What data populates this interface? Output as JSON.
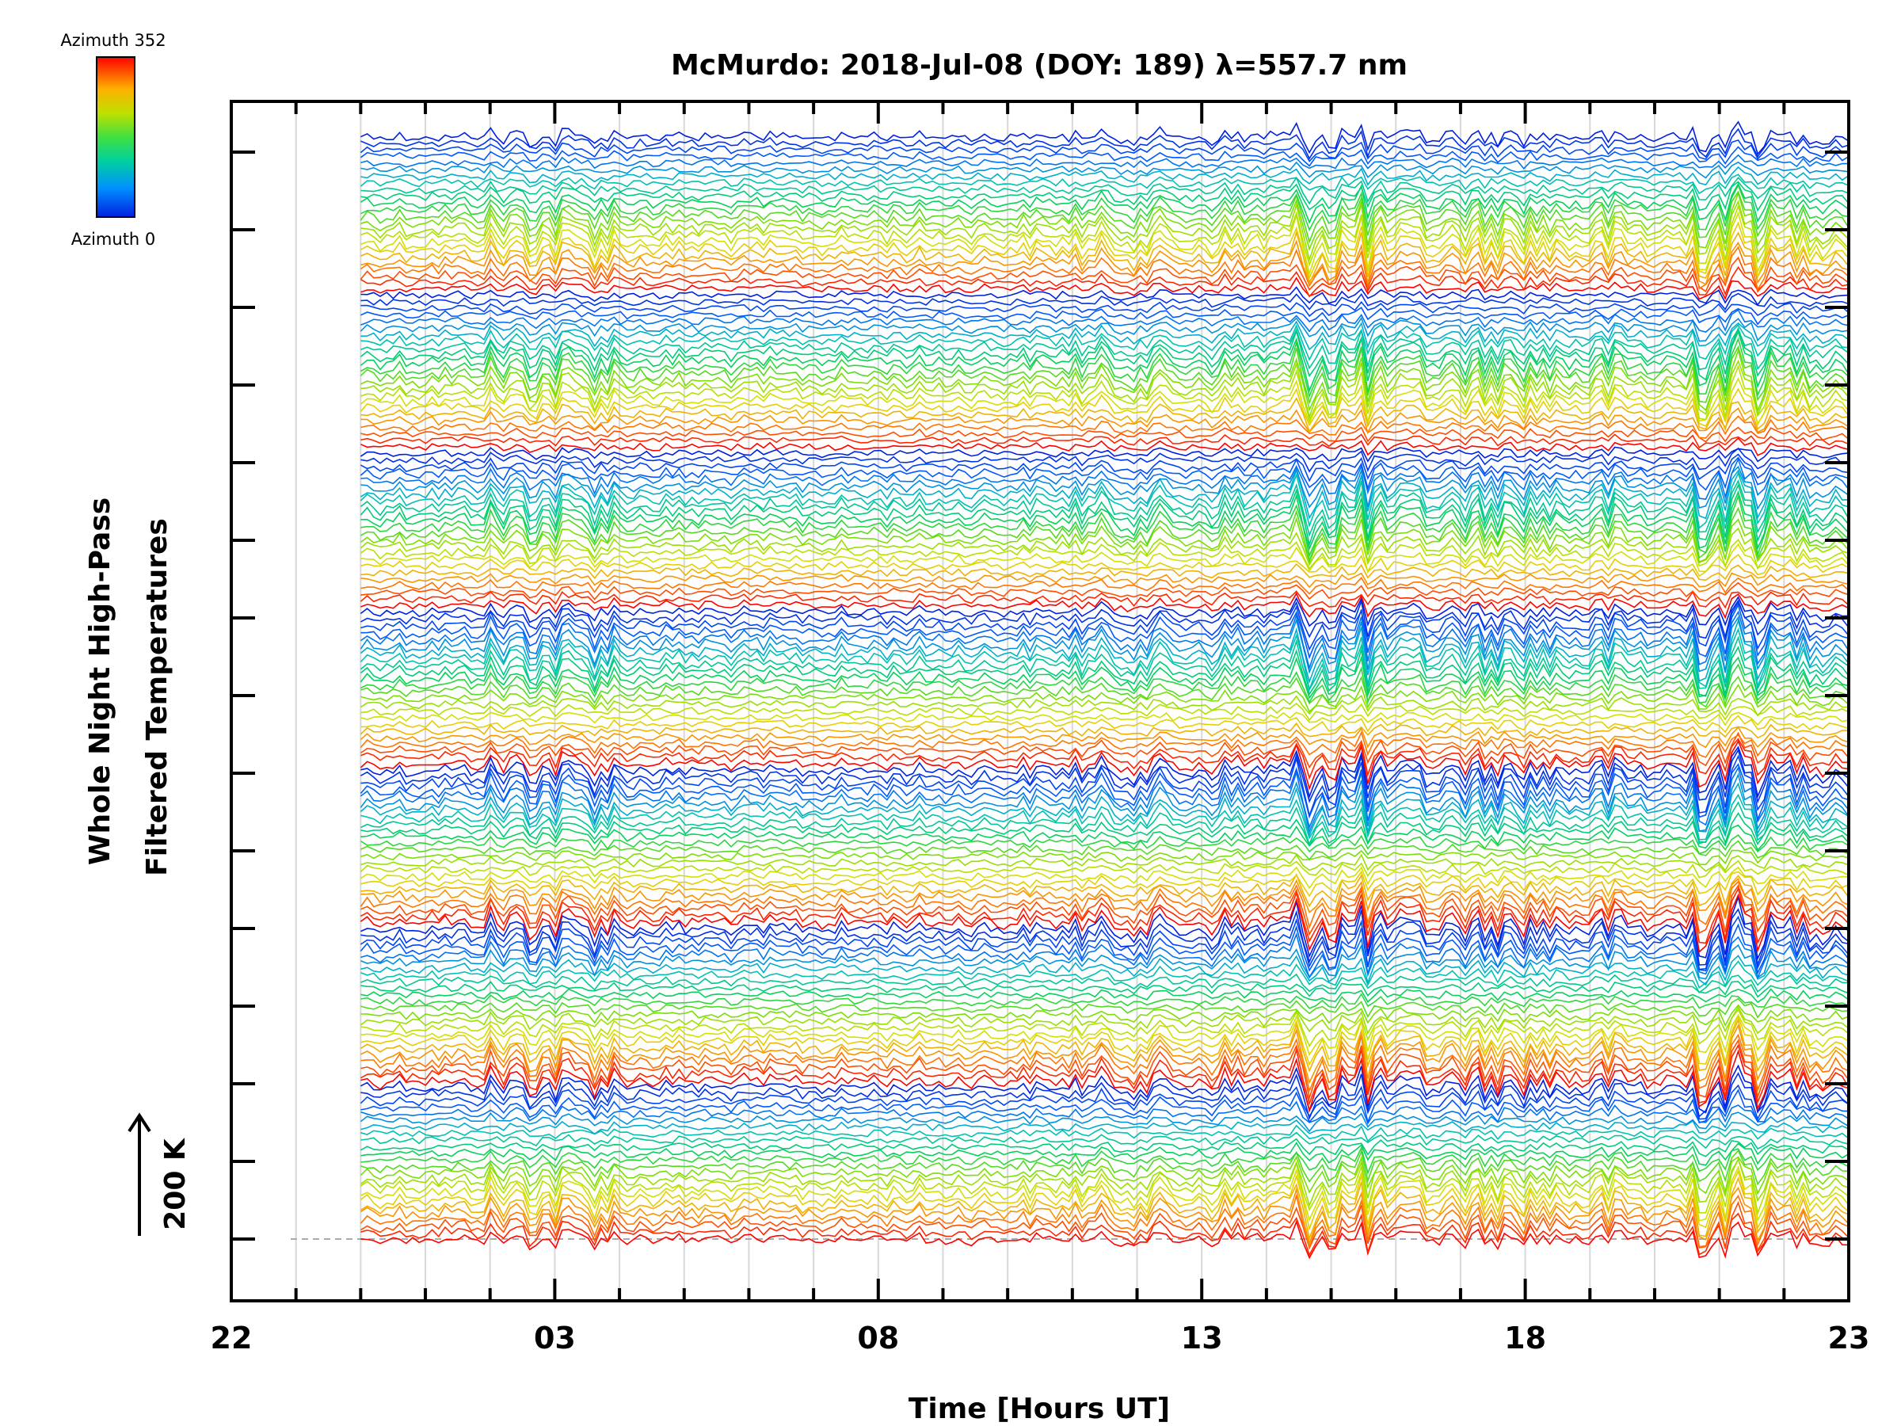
{
  "chart_data": {
    "type": "line",
    "title": "McMurdo: 2018-Jul-08 (DOY: 189) λ=557.7 nm",
    "xlabel": "Time [Hours UT]",
    "ylabel_line1": "Whole Night High-Pass",
    "ylabel_line2": "Filtered Temperatures",
    "scale_label": "200 K",
    "x_tick_labels": [
      "22",
      "03",
      "08",
      "13",
      "18",
      "23"
    ],
    "x_range_hours": [
      22,
      47
    ],
    "x_data_range_hours": [
      24,
      47
    ],
    "colorbar": {
      "max_label": "Azimuth 352",
      "min_label": "Azimuth 0",
      "colors": [
        "#ff0000",
        "#ff8000",
        "#e0e000",
        "#80e000",
        "#00d060",
        "#00c0c0",
        "#0060ff",
        "#0020e0"
      ]
    },
    "series_description": "Stacked high-pass filtered temperature traces, one per azimuth direction, offset vertically; color encodes azimuth (0 blue → 352 red).",
    "num_groups": 7,
    "traces_per_group": 24
  }
}
